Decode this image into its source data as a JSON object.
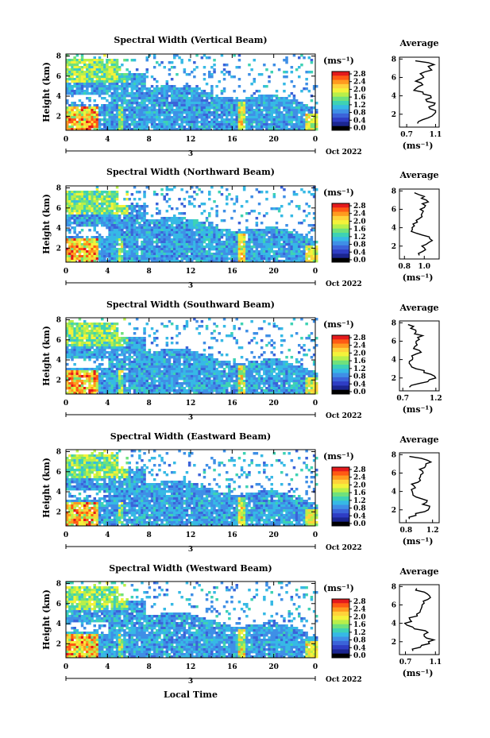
{
  "figure": {
    "time_axis_label": "Local Time",
    "month_year": "Oct 2022",
    "day_marker": "3",
    "height_label": "Height (km)",
    "unit_label": "(ms⁻¹)",
    "average_title": "Average"
  },
  "colorbar": {
    "ticks": [
      "2.8",
      "2.4",
      "2.0",
      "1.6",
      "1.2",
      "0.8",
      "0.4",
      "0.0"
    ],
    "colors": [
      "#e41a1c",
      "#ff5a14",
      "#ff9a1f",
      "#ffd23a",
      "#f4f23a",
      "#b8ef4a",
      "#6fe17c",
      "#3ed2b4",
      "#36b9e5",
      "#3f8fe6",
      "#3b63d9",
      "#2e3dc4",
      "#1b2590",
      "#000000"
    ]
  },
  "chart_data": [
    {
      "type": "heatmap",
      "title": "Spectral Width (Vertical Beam)",
      "xlabel": "",
      "ylabel": "Height (km)",
      "x_ticks": [
        "0",
        "4",
        "8",
        "12",
        "16",
        "20",
        "0"
      ],
      "xlim": [
        0,
        24
      ],
      "y_ticks": [
        "2",
        "4",
        "6",
        "8"
      ],
      "ylim": [
        0.6,
        8.2
      ],
      "colorbar_label": "(ms⁻¹)",
      "colorbar_range": [
        0.0,
        2.8
      ],
      "profile": {
        "title": "Average",
        "xlabel": "(ms⁻¹)",
        "x_ticks": [
          "0.7",
          "1.1"
        ],
        "xlim": [
          0.6,
          1.15
        ],
        "y_ticks": [
          "2",
          "4",
          "6",
          "8"
        ],
        "ylim": [
          0.6,
          8.2
        ],
        "heights": [
          1.0,
          1.4,
          1.8,
          2.2,
          2.6,
          3.0,
          3.4,
          3.8,
          4.2,
          4.6,
          5.0,
          5.4,
          5.8,
          6.2,
          6.6,
          7.0,
          7.4,
          7.8
        ],
        "values": [
          0.85,
          0.92,
          1.05,
          1.1,
          1.02,
          1.08,
          0.98,
          1.04,
          0.93,
          0.8,
          0.86,
          0.9,
          0.88,
          0.92,
          0.95,
          1.02,
          1.08,
          0.82
        ]
      }
    },
    {
      "type": "heatmap",
      "title": "Spectral Width (Northward Beam)",
      "xlabel": "",
      "ylabel": "Height (km)",
      "x_ticks": [
        "0",
        "4",
        "8",
        "12",
        "16",
        "20",
        "0"
      ],
      "xlim": [
        0,
        24
      ],
      "y_ticks": [
        "2",
        "4",
        "6",
        "8"
      ],
      "ylim": [
        0.6,
        8.2
      ],
      "colorbar_label": "(ms⁻¹)",
      "colorbar_range": [
        0.0,
        2.8
      ],
      "profile": {
        "title": "Average",
        "xlabel": "(ms⁻¹)",
        "x_ticks": [
          "0.8",
          "1.0"
        ],
        "xlim": [
          0.75,
          1.15
        ],
        "y_ticks": [
          "2",
          "4",
          "6",
          "8"
        ],
        "ylim": [
          0.6,
          8.2
        ],
        "heights": [
          1.0,
          1.4,
          1.8,
          2.2,
          2.6,
          3.0,
          3.4,
          3.8,
          4.2,
          4.6,
          5.0,
          5.4,
          5.8,
          6.2,
          6.6,
          7.0,
          7.4,
          7.8
        ],
        "values": [
          0.95,
          0.98,
          1.0,
          1.02,
          1.08,
          1.05,
          0.92,
          0.88,
          0.9,
          0.93,
          0.95,
          0.97,
          0.99,
          1.0,
          0.98,
          1.02,
          1.0,
          0.9
        ]
      }
    },
    {
      "type": "heatmap",
      "title": "Spectral Width (Southward Beam)",
      "xlabel": "",
      "ylabel": "Height (km)",
      "x_ticks": [
        "0",
        "4",
        "8",
        "12",
        "16",
        "20",
        "0"
      ],
      "xlim": [
        0,
        24
      ],
      "y_ticks": [
        "2",
        "4",
        "6",
        "8"
      ],
      "ylim": [
        0.6,
        8.2
      ],
      "colorbar_label": "(ms⁻¹)",
      "colorbar_range": [
        0.0,
        2.8
      ],
      "profile": {
        "title": "Average",
        "xlabel": "(ms⁻¹)",
        "x_ticks": [
          "0.7",
          "1.2"
        ],
        "xlim": [
          0.65,
          1.25
        ],
        "y_ticks": [
          "2",
          "4",
          "6",
          "8"
        ],
        "ylim": [
          0.6,
          8.2
        ],
        "heights": [
          1.0,
          1.4,
          1.8,
          2.2,
          2.6,
          3.0,
          3.4,
          3.8,
          4.2,
          4.6,
          5.0,
          5.4,
          5.8,
          6.2,
          6.6,
          7.0,
          7.4,
          7.8
        ],
        "values": [
          0.8,
          0.95,
          1.1,
          1.18,
          1.02,
          0.9,
          0.82,
          0.8,
          0.85,
          0.9,
          0.95,
          0.88,
          0.9,
          0.95,
          1.0,
          0.9,
          0.82,
          0.78
        ]
      }
    },
    {
      "type": "heatmap",
      "title": "Spectral Width (Eastward Beam)",
      "xlabel": "",
      "ylabel": "Height (km)",
      "x_ticks": [
        "0",
        "4",
        "8",
        "12",
        "16",
        "20",
        "0"
      ],
      "xlim": [
        0,
        24
      ],
      "y_ticks": [
        "2",
        "4",
        "6",
        "8"
      ],
      "ylim": [
        0.6,
        8.2
      ],
      "colorbar_label": "(ms⁻¹)",
      "colorbar_range": [
        0.0,
        2.8
      ],
      "profile": {
        "title": "Average",
        "xlabel": "(ms⁻¹)",
        "x_ticks": [
          "0.8",
          "1.2"
        ],
        "xlim": [
          0.7,
          1.3
        ],
        "y_ticks": [
          "2",
          "4",
          "6",
          "8"
        ],
        "ylim": [
          0.6,
          8.2
        ],
        "heights": [
          1.0,
          1.4,
          1.8,
          2.2,
          2.6,
          3.0,
          3.4,
          3.8,
          4.2,
          4.6,
          5.0,
          5.4,
          5.8,
          6.2,
          6.6,
          7.0,
          7.4,
          7.8
        ],
        "values": [
          0.85,
          0.95,
          1.08,
          1.15,
          1.05,
          1.12,
          0.95,
          0.9,
          0.88,
          0.92,
          0.98,
          1.0,
          1.02,
          1.05,
          1.08,
          1.1,
          1.12,
          0.85
        ]
      }
    },
    {
      "type": "heatmap",
      "title": "Spectral Width (Westward Beam)",
      "xlabel": "Local Time",
      "ylabel": "Height (km)",
      "x_ticks": [
        "0",
        "4",
        "8",
        "12",
        "16",
        "20",
        "0"
      ],
      "xlim": [
        0,
        24
      ],
      "y_ticks": [
        "2",
        "4",
        "6",
        "8"
      ],
      "ylim": [
        0.6,
        8.2
      ],
      "colorbar_label": "(ms⁻¹)",
      "colorbar_range": [
        0.0,
        2.8
      ],
      "profile": {
        "title": "Average",
        "xlabel": "(ms⁻¹)",
        "x_ticks": [
          "0.7",
          "1.1"
        ],
        "xlim": [
          0.62,
          1.15
        ],
        "y_ticks": [
          "2",
          "4",
          "6",
          "8"
        ],
        "ylim": [
          0.6,
          8.2
        ],
        "heights": [
          1.0,
          1.4,
          1.8,
          2.2,
          2.6,
          3.0,
          3.4,
          3.8,
          4.2,
          4.6,
          5.0,
          5.4,
          5.8,
          6.2,
          6.6,
          7.0,
          7.4,
          7.8
        ],
        "values": [
          0.8,
          0.9,
          1.02,
          1.08,
          0.95,
          1.0,
          0.82,
          0.72,
          0.78,
          0.75,
          0.85,
          0.9,
          0.92,
          0.95,
          1.0,
          1.02,
          0.95,
          0.85
        ]
      }
    }
  ]
}
